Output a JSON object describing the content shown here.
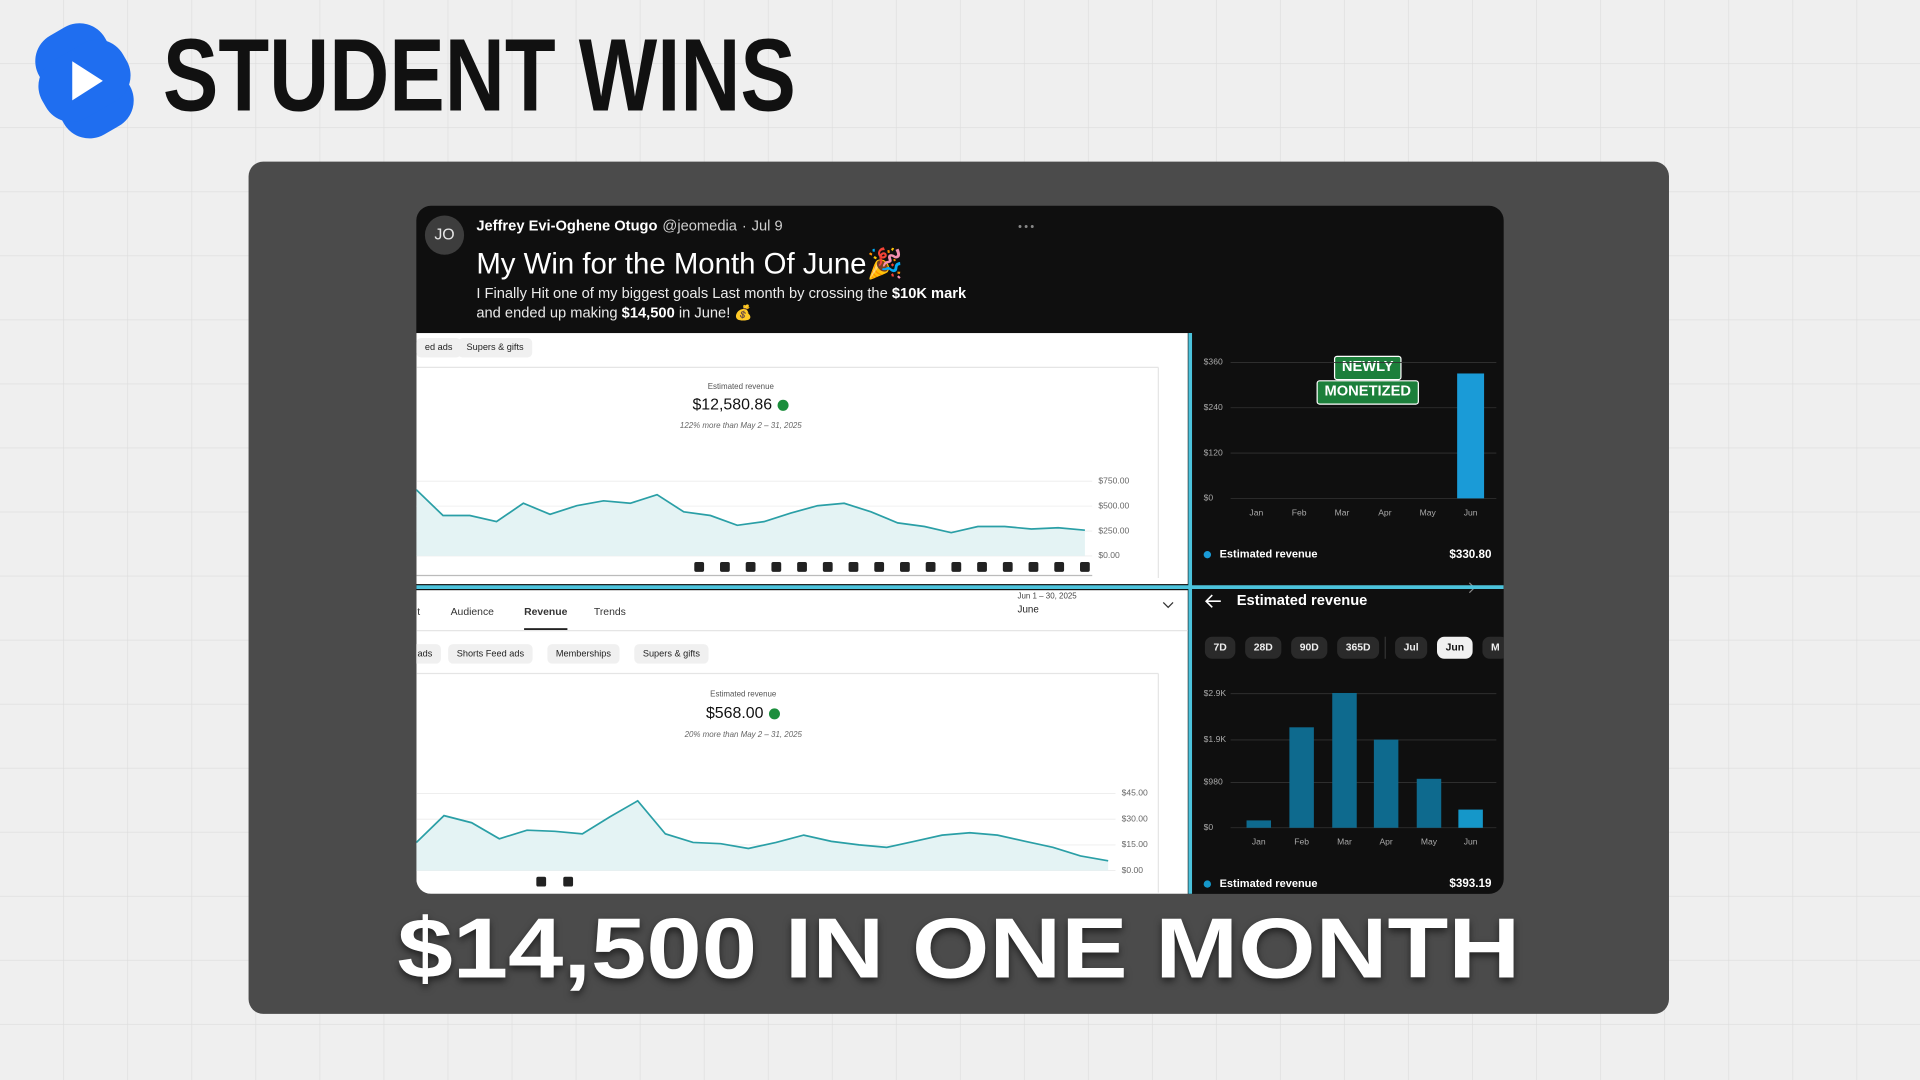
{
  "header": {
    "title": "STUDENT WINS"
  },
  "tweet": {
    "avatar": "JO",
    "name": "Jeffrey Evi-Oghene Otugo",
    "handle": "@jeomedia",
    "separator": "·",
    "date": "Jul 9",
    "title": "My Win for the Month Of June🎉",
    "body": [
      [
        {
          "text": "I Finally Hit one of my biggest goals Last month by crossing the ",
          "bold": false
        },
        {
          "text": "$10K mark",
          "bold": true
        }
      ],
      [
        {
          "text": "and ended up making ",
          "bold": false
        },
        {
          "text": "$14,500",
          "bold": true
        },
        {
          "text": " in June! 💰",
          "bold": false
        }
      ]
    ]
  },
  "chart_data": [
    {
      "type": "line",
      "chips": [
        "ed ads",
        "Supers & gifts"
      ],
      "metric": "Estimated revenue",
      "total": "$12,580.86",
      "comparison": "122% more than May 2 – 31, 2025",
      "values": [
        664,
        406,
        406,
        344,
        529,
        418,
        504,
        553,
        529,
        615,
        443,
        406,
        307,
        344,
        430,
        504,
        529,
        443,
        332,
        295,
        234,
        295,
        295,
        271,
        283,
        258
      ],
      "color": "#2a9fa6",
      "fill": "#e4f3f4",
      "ylim": [
        0,
        750
      ],
      "yticks": [
        {
          "value": 0,
          "label": "$0.00"
        },
        {
          "value": 250,
          "label": "$250.00"
        },
        {
          "value": 500,
          "label": "$500.00"
        },
        {
          "value": 750,
          "label": "$750.00"
        }
      ],
      "grid": true
    },
    {
      "type": "bar",
      "badge": [
        "NEWLY",
        "MONETIZED"
      ],
      "categories": [
        "Jan",
        "Feb",
        "Mar",
        "Apr",
        "May",
        "Jun"
      ],
      "values": [
        0,
        0,
        0,
        0,
        0,
        330.8
      ],
      "colors": [
        "#1a9bd7",
        "#1a9bd7",
        "#1a9bd7",
        "#1a9bd7",
        "#1a9bd7",
        "#1a9bd7"
      ],
      "ylim": [
        0,
        360
      ],
      "yticks": [
        {
          "value": 0,
          "label": "$0"
        },
        {
          "value": 120,
          "label": "$120"
        },
        {
          "value": 240,
          "label": "$240"
        },
        {
          "value": 360,
          "label": "$360"
        }
      ],
      "grid": true,
      "legend_label": "Estimated revenue",
      "legend_value": "$330.80"
    },
    {
      "type": "line",
      "tabs": [
        "nt",
        "Audience",
        "Revenue",
        "Trends"
      ],
      "active_tab": 2,
      "date_range": "Jun 1 – 30, 2025",
      "period": "June",
      "chips": [
        "ads",
        "Shorts Feed ads",
        "Memberships",
        "Supers & gifts"
      ],
      "metric": "Estimated revenue",
      "total": "$568.00",
      "comparison": "20% more than May 2 – 31, 2025",
      "values": [
        16.4,
        32.1,
        27.9,
        18.6,
        23.6,
        22.9,
        21.4,
        31.4,
        40.7,
        21.4,
        16.4,
        15.7,
        12.9,
        16.4,
        20.7,
        17.1,
        15,
        13.6,
        17.1,
        20.7,
        22.1,
        20.7,
        17.1,
        13.6,
        8.6,
        5.7
      ],
      "color": "#2a9fa6",
      "fill": "#e4f3f4",
      "ylim": [
        0,
        45
      ],
      "yticks": [
        {
          "value": 0,
          "label": "$0.00"
        },
        {
          "value": 15,
          "label": "$15.00"
        },
        {
          "value": 30,
          "label": "$30.00"
        },
        {
          "value": 45,
          "label": "$45.00"
        }
      ],
      "grid": true
    },
    {
      "type": "bar",
      "title": "Estimated revenue",
      "periods": [
        "7D",
        "28D",
        "90D",
        "365D",
        "Jul",
        "Jun",
        "M"
      ],
      "active_period": 5,
      "categories": [
        "Jan",
        "Feb",
        "Mar",
        "Apr",
        "May",
        "Jun"
      ],
      "values": [
        159,
        2173,
        2915,
        1907,
        1059,
        393.19
      ],
      "colors": [
        "#0e6a8e",
        "#0e6a8e",
        "#0e6a8e",
        "#0e6a8e",
        "#0e6a8e",
        "#1597c9"
      ],
      "ylim": [
        0,
        2940
      ],
      "yticks": [
        {
          "value": 0,
          "label": "$0"
        },
        {
          "value": 980,
          "label": "$980"
        },
        {
          "value": 1900,
          "label": "$1.9K"
        },
        {
          "value": 2900,
          "label": "$2.9K"
        }
      ],
      "grid": true,
      "legend_label": "Estimated revenue",
      "legend_value": "$393.19"
    }
  ],
  "footer": {
    "headline": "$14,500 IN ONE MONTH"
  }
}
